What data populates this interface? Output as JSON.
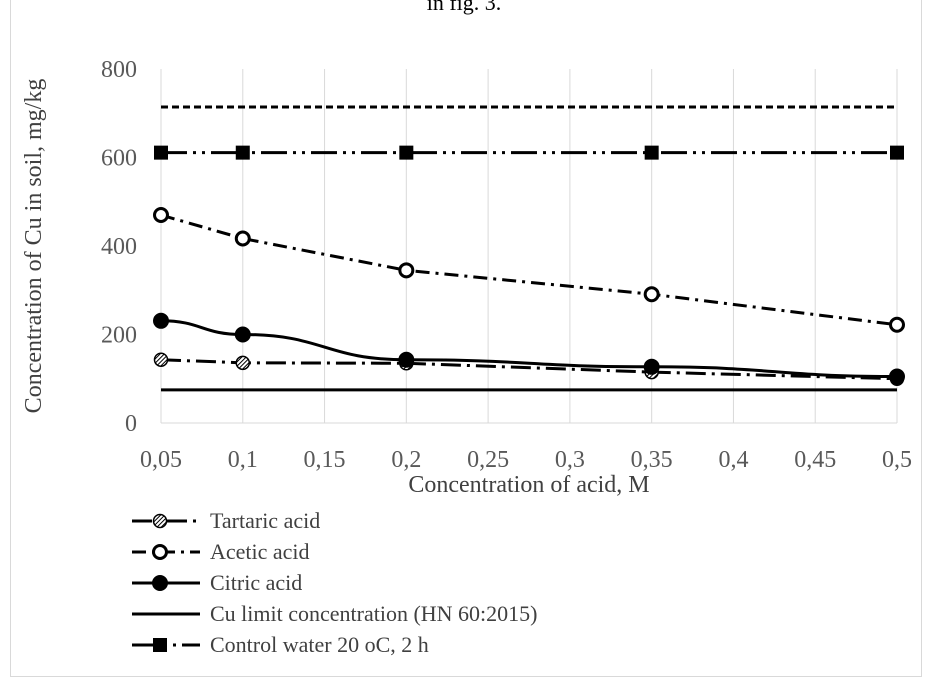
{
  "chart_data": {
    "type": "line",
    "title": "in fig. 3.",
    "xlabel": "Concentration of acid, M",
    "ylabel": "Concentration of Cu in soil, mg/kg",
    "x": [
      0.05,
      0.1,
      0.2,
      0.35,
      0.5
    ],
    "x_ticks": [
      "0,05",
      "0,1",
      "0,15",
      "0,2",
      "0,25",
      "0,3",
      "0,35",
      "0,4",
      "0,45",
      "0,5"
    ],
    "y_ticks": [
      "0",
      "200",
      "400",
      "600",
      "800"
    ],
    "ylim": [
      0,
      800
    ],
    "grid": "vertical",
    "legend_position": "bottom-left",
    "series": [
      {
        "name": "Tartaric acid",
        "values": [
          143,
          136,
          135,
          115,
          100
        ],
        "style": "long-dash-dot",
        "marker": "hatched-circle",
        "color": "#000000"
      },
      {
        "name": "Acetic acid",
        "values": [
          470,
          417,
          345,
          291,
          222
        ],
        "style": "dash-dot",
        "marker": "open-circle",
        "color": "#000000"
      },
      {
        "name": "Citric acid",
        "values": [
          231,
          200,
          143,
          127,
          105
        ],
        "style": "solid",
        "marker": "filled-circle",
        "color": "#000000"
      },
      {
        "name": "Cu limit concentration (HN 60:2015)",
        "values": [
          75,
          75,
          75,
          75,
          75
        ],
        "style": "solid",
        "marker": "none",
        "color": "#000000"
      },
      {
        "name": "Control water 20 oC, 2 h",
        "values": [
          611,
          611,
          611,
          611,
          611
        ],
        "style": "long-dash-dot-dot",
        "marker": "filled-square",
        "color": "#000000"
      },
      {
        "name": "",
        "values": [
          714,
          714,
          714,
          714,
          714
        ],
        "style": "short-dash",
        "marker": "none",
        "color": "#000000"
      }
    ]
  }
}
